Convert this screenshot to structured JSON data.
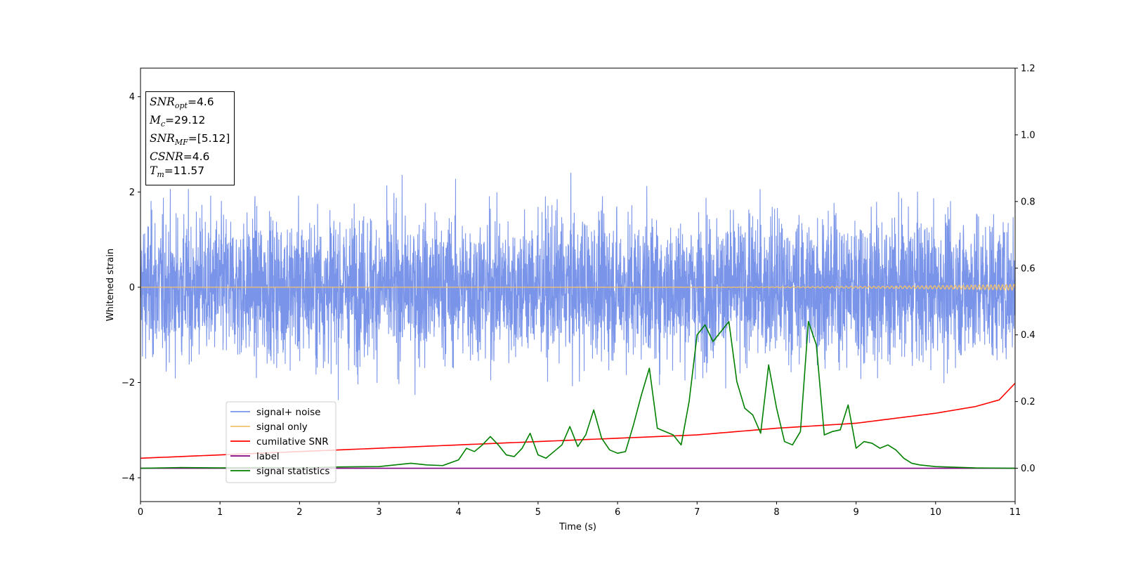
{
  "chart_data": {
    "type": "line",
    "xlabel": "Time (s)",
    "ylabel": "Whitened strain",
    "xlim": [
      0,
      11
    ],
    "ylim": [
      -4.5,
      4.6
    ],
    "y2lim": [
      -0.1,
      1.2
    ],
    "x_ticks": [
      "0",
      "1",
      "2",
      "3",
      "4",
      "5",
      "6",
      "7",
      "8",
      "9",
      "10",
      "11"
    ],
    "y_ticks": [
      "4",
      "2",
      "0",
      "−2",
      "−4"
    ],
    "y_tick_values": [
      4,
      2,
      0,
      -2,
      -4
    ],
    "y2_ticks": [
      "0.0",
      "0.2",
      "0.4",
      "0.6",
      "0.8",
      "1.0",
      "1.2"
    ],
    "y2_tick_values": [
      0.0,
      0.2,
      0.4,
      0.6,
      0.8,
      1.0,
      1.2
    ],
    "legend_position": "lower-left",
    "legend": [
      {
        "label": "signal+ noise",
        "color": "#7994e8"
      },
      {
        "label": "signal only",
        "color": "#f5c26b"
      },
      {
        "label": "cumilative SNR",
        "color": "#ff0000"
      },
      {
        "label": "label",
        "color": "#800080"
      },
      {
        "label": "signal statistics",
        "color": "#008000"
      }
    ],
    "annotation": {
      "snr_opt_sym": "SNR",
      "snr_opt_sub": "opt",
      "snr_opt_val": "=4.6",
      "mc_sym": "M",
      "mc_sub": "c",
      "mc_val": "=29.12",
      "snr_mf_sym": "SNR",
      "snr_mf_sub": "MF",
      "snr_mf_val": "=[5.12]",
      "csnr_sym": "CSNR",
      "csnr_val": "=4.6",
      "tm_sym": "T",
      "tm_sub": "m",
      "tm_val": "=11.57"
    },
    "noise": {
      "amplitude_std": 0.75,
      "mean": 0.0,
      "color": "#7994e8"
    },
    "signal_only": {
      "amplitude_start": 0.0,
      "amplitude_end": 0.06,
      "color": "#f5c26b"
    },
    "cumulative_snr": {
      "axis": "y2",
      "x": [
        0,
        1,
        2,
        3,
        4,
        5,
        6,
        7,
        8,
        9,
        9.5,
        10,
        10.5,
        10.8,
        11
      ],
      "y": [
        0.03,
        0.04,
        0.05,
        0.06,
        0.07,
        0.08,
        0.09,
        0.1,
        0.12,
        0.135,
        0.15,
        0.165,
        0.185,
        0.205,
        0.255
      ]
    },
    "label_line": {
      "axis": "y2",
      "x": [
        0,
        11
      ],
      "y": [
        0,
        0
      ]
    },
    "signal_statistics": {
      "axis": "y2",
      "x": [
        0,
        0.5,
        1,
        1.5,
        2,
        2.5,
        3,
        3.2,
        3.4,
        3.6,
        3.8,
        4.0,
        4.1,
        4.2,
        4.3,
        4.4,
        4.5,
        4.6,
        4.7,
        4.8,
        4.9,
        5.0,
        5.1,
        5.2,
        5.3,
        5.4,
        5.5,
        5.6,
        5.7,
        5.8,
        5.9,
        6.0,
        6.1,
        6.2,
        6.3,
        6.4,
        6.5,
        6.6,
        6.7,
        6.8,
        6.9,
        7.0,
        7.1,
        7.2,
        7.3,
        7.4,
        7.5,
        7.6,
        7.7,
        7.8,
        7.9,
        8.0,
        8.1,
        8.2,
        8.3,
        8.4,
        8.5,
        8.6,
        8.7,
        8.8,
        8.9,
        9.0,
        9.1,
        9.2,
        9.3,
        9.4,
        9.5,
        9.6,
        9.7,
        9.8,
        10.0,
        10.5,
        11.0
      ],
      "y": [
        0.0,
        0.002,
        0.001,
        0.002,
        0.001,
        0.004,
        0.005,
        0.01,
        0.015,
        0.01,
        0.008,
        0.025,
        0.06,
        0.05,
        0.07,
        0.095,
        0.07,
        0.04,
        0.035,
        0.06,
        0.105,
        0.04,
        0.03,
        0.05,
        0.07,
        0.125,
        0.065,
        0.1,
        0.175,
        0.09,
        0.055,
        0.045,
        0.05,
        0.13,
        0.22,
        0.3,
        0.12,
        0.11,
        0.1,
        0.07,
        0.2,
        0.4,
        0.43,
        0.38,
        0.41,
        0.44,
        0.26,
        0.18,
        0.16,
        0.105,
        0.31,
        0.18,
        0.08,
        0.07,
        0.11,
        0.44,
        0.37,
        0.1,
        0.11,
        0.115,
        0.19,
        0.06,
        0.08,
        0.075,
        0.06,
        0.07,
        0.055,
        0.03,
        0.015,
        0.01,
        0.005,
        0.001,
        0.0
      ]
    }
  }
}
